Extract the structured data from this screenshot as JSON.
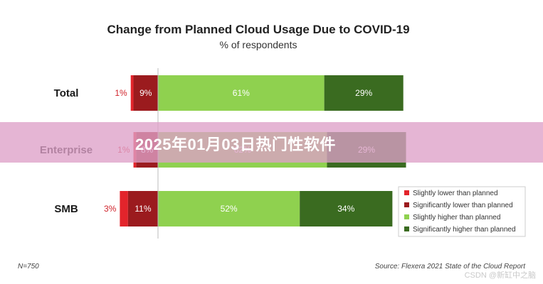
{
  "chart_data": {
    "type": "bar",
    "orientation": "horizontal",
    "stacked": true,
    "title": "Change from Planned Cloud Usage Due to COVID-19",
    "subtitle": "% of respondents",
    "categories": [
      "Total",
      "Enterprise",
      "SMB"
    ],
    "series": [
      {
        "name": "Slightly lower than planned",
        "color": "#e3242b",
        "values": [
          1,
          1,
          3
        ]
      },
      {
        "name": "Significantly lower than planned",
        "color": "#9b1b1e",
        "values": [
          9,
          8,
          11
        ]
      },
      {
        "name": "Slightly higher than planned",
        "color": "#8fd14f",
        "values": [
          61,
          62,
          52
        ]
      },
      {
        "name": "Significantly higher than planned",
        "color": "#3a6b20",
        "values": [
          29,
          29,
          34
        ]
      }
    ],
    "data_labels": {
      "Total": [
        "1%",
        "9%",
        "61%",
        "29%"
      ],
      "Enterprise": [
        "1%",
        "8%",
        "62%",
        "29%"
      ],
      "SMB": [
        "3%",
        "11%",
        "52%",
        "34%"
      ]
    },
    "legend_position": "bottom-right",
    "footnote_left": "N=750",
    "source": "Source: Flexera 2021 State of the Cloud Report"
  },
  "overlay": {
    "banner_text": "2025年01月03日热门性软件",
    "watermark": "CSDN @新缸中之脑"
  }
}
